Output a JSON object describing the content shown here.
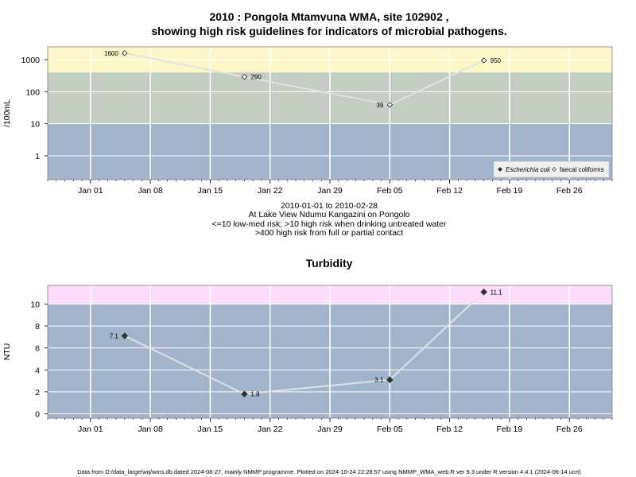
{
  "page": {
    "title_line1": "2010 : Pongola Mtamvuna WMA, site 102902 ,",
    "title_line2": "showing high risk guidelines for indicators of microbial pathogens.",
    "footer": "Data from D:/data_large/wq/wms.db dated 2024-08-27, mainly NMMP programme. Plotted on 2024-10-24 22:28:57 using NMMP_WMA_web.R ver 9.3 under R version 4.4.1 (2024-06-14 ucrt)"
  },
  "chart_data": [
    {
      "type": "line",
      "title": "",
      "ylabel": "/100mL",
      "y_scale": "log",
      "ylim": [
        0.18,
        2500
      ],
      "yticks": [
        "1",
        "10",
        "100",
        "1000"
      ],
      "x_range": [
        "2009-12-27",
        "2010-03-03"
      ],
      "xticks": [
        "Jan 01",
        "Jan 08",
        "Jan 15",
        "Jan 22",
        "Jan 29",
        "Feb 05",
        "Feb 12",
        "Feb 19",
        "Feb 26"
      ],
      "caption": [
        "2010-01-01 to 2010-02-28",
        "At Lake View Ndumu Kangazini on Pongolo",
        "<=10 low-med risk; >10 high risk when drinking untreated water",
        ">400 high risk from full or partial contact"
      ],
      "bands": [
        {
          "from": 0.18,
          "to": 10,
          "color": "#a2b3cc"
        },
        {
          "from": 10,
          "to": 400,
          "color": "#c4cdc1"
        },
        {
          "from": 400,
          "to": 2500,
          "color": "#fdf7c8"
        }
      ],
      "legend": {
        "position": "bottom-right",
        "entries": [
          "Escherichia coli",
          "faecal coliforms"
        ]
      },
      "series": [
        {
          "name": "faecal coliforms",
          "marker": "open-diamond",
          "x": [
            "2010-01-05",
            "2010-01-19",
            "2010-02-05",
            "2010-02-16"
          ],
          "y": [
            1600,
            290,
            39,
            950
          ],
          "labels": [
            "1600",
            "290",
            "39",
            "950"
          ]
        }
      ]
    },
    {
      "type": "line",
      "title": "Turbidity",
      "ylabel": "NTU",
      "y_scale": "linear",
      "ylim": [
        -0.4,
        11.7
      ],
      "yticks": [
        "0",
        "2",
        "4",
        "6",
        "8",
        "10"
      ],
      "x_range": [
        "2009-12-27",
        "2010-03-03"
      ],
      "xticks": [
        "Jan 01",
        "Jan 08",
        "Jan 15",
        "Jan 22",
        "Jan 29",
        "Feb 05",
        "Feb 12",
        "Feb 19",
        "Feb 26"
      ],
      "bands": [
        {
          "from": -0.4,
          "to": 10,
          "color": "#a2b3cc"
        },
        {
          "from": 10,
          "to": 11.7,
          "color": "#fcdcfa"
        }
      ],
      "series": [
        {
          "marker": "filled-diamond",
          "x": [
            "2010-01-05",
            "2010-01-19",
            "2010-02-05",
            "2010-02-16"
          ],
          "y": [
            7.1,
            1.8,
            3.1,
            11.1
          ],
          "labels": [
            "7.1",
            "1.8",
            "3.1",
            "11.1"
          ]
        }
      ]
    }
  ]
}
